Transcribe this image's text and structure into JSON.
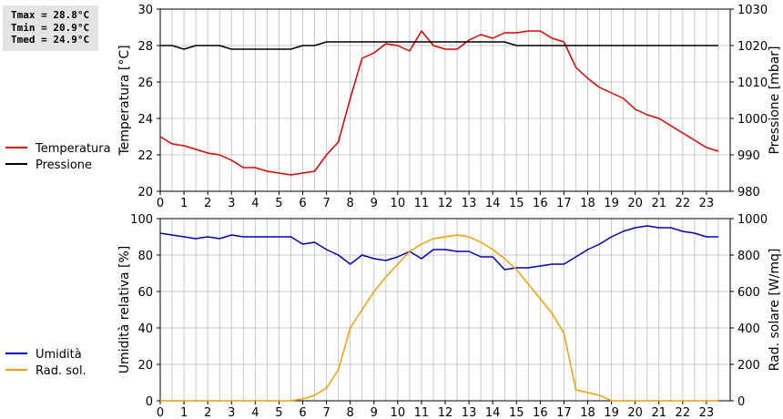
{
  "stats": {
    "tmax": "Tmax = 28.8°C",
    "tmin": "Tmin = 20.9°C",
    "tmed": "Tmed = 24.9°C"
  },
  "colors": {
    "temperatura": "#dd0000",
    "pressione": "#000000",
    "umidita": "#0000bb",
    "rad_sol": "#f0a000",
    "grid": "#c8c8c8"
  },
  "chart_data": [
    {
      "type": "line",
      "xlabel": "",
      "ylabel": "Temperatura [°C]",
      "y2label": "Pressione [mbar]",
      "xlim": [
        0,
        24
      ],
      "ylim": [
        20,
        30
      ],
      "y2lim": [
        980,
        1030
      ],
      "x_ticks": [
        "0",
        "1",
        "2",
        "3",
        "4",
        "5",
        "6",
        "7",
        "8",
        "9",
        "10",
        "11",
        "12",
        "13",
        "14",
        "15",
        "16",
        "17",
        "18",
        "19",
        "20",
        "21",
        "22",
        "23"
      ],
      "y_ticks": [
        "20",
        "22",
        "24",
        "26",
        "28",
        "30"
      ],
      "y2_ticks": [
        "980",
        "990",
        "1000",
        "1010",
        "1020",
        "1030"
      ],
      "grid": true,
      "legend_position": "left",
      "series": [
        {
          "name": "Temperatura",
          "axis": "left",
          "color": "#dd0000",
          "x": [
            0,
            0.5,
            1,
            1.5,
            2,
            2.5,
            3,
            3.5,
            4,
            4.5,
            5,
            5.5,
            6,
            6.5,
            7,
            7.5,
            8,
            8.5,
            9,
            9.5,
            10,
            10.5,
            11,
            11.5,
            12,
            12.5,
            13,
            13.5,
            14,
            14.5,
            15,
            15.5,
            16,
            16.5,
            17,
            17.5,
            18,
            18.5,
            19,
            19.5,
            20,
            20.5,
            21,
            21.5,
            22,
            22.5,
            23,
            23.5
          ],
          "values": [
            23.0,
            22.6,
            22.5,
            22.3,
            22.1,
            22.0,
            21.7,
            21.3,
            21.3,
            21.1,
            21.0,
            20.9,
            21.0,
            21.1,
            22.0,
            22.7,
            25.1,
            27.3,
            27.6,
            28.1,
            28.0,
            27.7,
            28.8,
            28.0,
            27.8,
            27.8,
            28.3,
            28.6,
            28.4,
            28.7,
            28.7,
            28.8,
            28.8,
            28.4,
            28.2,
            26.8,
            26.2,
            25.7,
            25.4,
            25.1,
            24.5,
            24.2,
            24.0,
            23.6,
            23.2,
            22.8,
            22.4,
            22.2
          ]
        },
        {
          "name": "Pressione",
          "axis": "right",
          "color": "#000000",
          "x": [
            0,
            0.5,
            1,
            1.5,
            2,
            2.5,
            3,
            3.5,
            4,
            4.5,
            5,
            5.5,
            6,
            6.5,
            7,
            7.5,
            8,
            8.5,
            9,
            9.5,
            10,
            10.5,
            11,
            11.5,
            12,
            12.5,
            13,
            13.5,
            14,
            14.5,
            15,
            15.5,
            16,
            16.5,
            17,
            17.5,
            18,
            18.5,
            19,
            19.5,
            20,
            20.5,
            21,
            21.5,
            22,
            22.5,
            23,
            23.5
          ],
          "values": [
            1020,
            1020,
            1019,
            1020,
            1020,
            1020,
            1019,
            1019,
            1019,
            1019,
            1019,
            1019,
            1020,
            1020,
            1021,
            1021,
            1021,
            1021,
            1021,
            1021,
            1021,
            1021,
            1021,
            1021,
            1021,
            1021,
            1021,
            1021,
            1021,
            1021,
            1020,
            1020,
            1020,
            1020,
            1020,
            1020,
            1020,
            1020,
            1020,
            1020,
            1020,
            1020,
            1020,
            1020,
            1020,
            1020,
            1020,
            1020
          ]
        }
      ]
    },
    {
      "type": "line",
      "xlabel": "",
      "ylabel": "Umidità relativa [%]",
      "y2label": "Rad. solare [W/mq]",
      "xlim": [
        0,
        24
      ],
      "ylim": [
        0,
        100
      ],
      "y2lim": [
        0,
        1000
      ],
      "x_ticks": [
        "0",
        "1",
        "2",
        "3",
        "4",
        "5",
        "6",
        "7",
        "8",
        "9",
        "10",
        "11",
        "12",
        "13",
        "14",
        "15",
        "16",
        "17",
        "18",
        "19",
        "20",
        "21",
        "22",
        "23"
      ],
      "y_ticks": [
        "0",
        "20",
        "40",
        "60",
        "80",
        "100"
      ],
      "y2_ticks": [
        "0",
        "200",
        "400",
        "600",
        "800",
        "1000"
      ],
      "grid": true,
      "legend_position": "left",
      "series": [
        {
          "name": "Umidità",
          "axis": "left",
          "color": "#0000bb",
          "x": [
            0,
            0.5,
            1,
            1.5,
            2,
            2.5,
            3,
            3.5,
            4,
            4.5,
            5,
            5.5,
            6,
            6.5,
            7,
            7.5,
            8,
            8.5,
            9,
            9.5,
            10,
            10.5,
            11,
            11.5,
            12,
            12.5,
            13,
            13.5,
            14,
            14.5,
            15,
            15.5,
            16,
            16.5,
            17,
            17.5,
            18,
            18.5,
            19,
            19.5,
            20,
            20.5,
            21,
            21.5,
            22,
            22.5,
            23,
            23.5
          ],
          "values": [
            92,
            91,
            90,
            89,
            90,
            89,
            91,
            90,
            90,
            90,
            90,
            90,
            86,
            87,
            83,
            80,
            75,
            80,
            78,
            77,
            79,
            82,
            78,
            83,
            83,
            82,
            82,
            79,
            79,
            72,
            73,
            73,
            74,
            75,
            75,
            79,
            83,
            86,
            90,
            93,
            95,
            96,
            95,
            95,
            93,
            92,
            90,
            90
          ]
        },
        {
          "name": "Rad. sol.",
          "axis": "right",
          "color": "#f0a000",
          "x": [
            0,
            0.5,
            1,
            1.5,
            2,
            2.5,
            3,
            3.5,
            4,
            4.5,
            5,
            5.5,
            6,
            6.5,
            7,
            7.5,
            8,
            8.5,
            9,
            9.5,
            10,
            10.5,
            11,
            11.5,
            12,
            12.5,
            13,
            13.5,
            14,
            14.5,
            15,
            15.5,
            16,
            16.5,
            17,
            17.5,
            18,
            18.5,
            19,
            19.5,
            20,
            20.5,
            21,
            21.5,
            22,
            22.5,
            23,
            23.5
          ],
          "values": [
            0,
            0,
            0,
            0,
            0,
            0,
            0,
            0,
            0,
            0,
            0,
            0,
            10,
            30,
            70,
            170,
            400,
            500,
            600,
            680,
            750,
            820,
            860,
            890,
            900,
            910,
            900,
            870,
            830,
            780,
            720,
            640,
            560,
            480,
            370,
            60,
            45,
            30,
            0,
            0,
            0,
            0,
            0,
            0,
            0,
            0,
            0,
            0
          ]
        }
      ]
    }
  ]
}
